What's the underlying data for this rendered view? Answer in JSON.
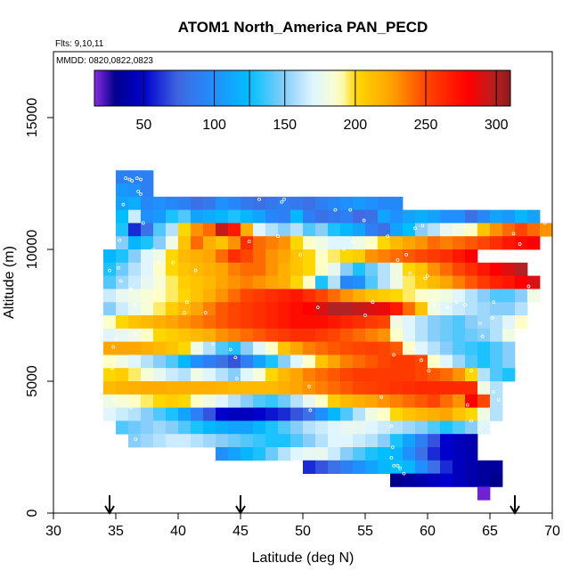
{
  "chart_data": {
    "type": "heatmap",
    "title": "ATOM1 North_America PAN_PECD",
    "annotation_flights": "Flts: 9,10,11",
    "annotation_dates": "MMDD: 0820,0822,0823",
    "xlabel": "Latitude (deg N)",
    "ylabel": "Altitude (m)",
    "xlim": [
      30,
      70
    ],
    "ylim": [
      0,
      17500
    ],
    "xticks": [
      30,
      35,
      40,
      45,
      50,
      55,
      60,
      65,
      70
    ],
    "yticks": [
      0,
      5000,
      10000,
      15000
    ],
    "colorbar": {
      "range": [
        15,
        310
      ],
      "ticks": [
        50,
        100,
        150,
        200,
        250,
        300
      ],
      "boundaries": [
        50,
        100,
        125,
        150,
        200,
        250,
        300
      ],
      "stops": [
        {
          "v": 15,
          "c": "#8a2be2"
        },
        {
          "v": 30,
          "c": "#00008b"
        },
        {
          "v": 50,
          "c": "#0000cd"
        },
        {
          "v": 75,
          "c": "#4169e1"
        },
        {
          "v": 100,
          "c": "#1e90ff"
        },
        {
          "v": 125,
          "c": "#00bfff"
        },
        {
          "v": 150,
          "c": "#87cefa"
        },
        {
          "v": 170,
          "c": "#e0f6ff"
        },
        {
          "v": 190,
          "c": "#ffffc8"
        },
        {
          "v": 200,
          "c": "#ffd700"
        },
        {
          "v": 225,
          "c": "#ffa500"
        },
        {
          "v": 250,
          "c": "#ff4500"
        },
        {
          "v": 280,
          "c": "#ff0000"
        },
        {
          "v": 300,
          "c": "#b22222"
        },
        {
          "v": 310,
          "c": "#8b1a1a"
        }
      ]
    },
    "arrow_latitudes": [
      34.5,
      45,
      67
    ],
    "grid": {
      "cell_width_deg": 1,
      "cell_height_m": 500,
      "rows": [
        {
          "alt": 12500,
          "start": 35,
          "values": [
            90,
            90,
            90
          ]
        },
        {
          "alt": 12000,
          "start": 35,
          "values": [
            105,
            100,
            90
          ]
        },
        {
          "alt": 11500,
          "start": 35,
          "values": [
            110,
            115,
            95,
            100,
            95,
            90,
            80,
            85,
            100,
            95,
            85,
            80,
            85,
            90,
            85,
            80,
            90,
            95,
            100,
            105,
            100,
            95,
            95
          ]
        },
        {
          "alt": 11000,
          "start": 35,
          "values": [
            125,
            165,
            100,
            105,
            130,
            140,
            110,
            115,
            120,
            130,
            120,
            110,
            95,
            90,
            120,
            90,
            80,
            85,
            90,
            75,
            80,
            110,
            100,
            110,
            115,
            110,
            100,
            100,
            80,
            95,
            110,
            105,
            120,
            110
          ]
        },
        {
          "alt": 10500,
          "start": 35,
          "values": [
            130,
            60,
            80,
            140,
            160,
            200,
            230,
            240,
            295,
            270,
            220,
            170,
            160,
            150,
            160,
            140,
            150,
            130,
            120,
            110,
            90,
            80,
            110,
            125,
            150,
            160,
            175,
            180,
            190,
            210,
            230,
            240,
            250,
            240,
            230
          ]
        },
        {
          "alt": 10000,
          "start": 35,
          "values": [
            150,
            120,
            130,
            150,
            180,
            210,
            240,
            220,
            210,
            230,
            260,
            240,
            235,
            230,
            200,
            190,
            180,
            170,
            170,
            180,
            190,
            200,
            215,
            225,
            230,
            240,
            235,
            240,
            245,
            250,
            260,
            270,
            275,
            280
          ]
        },
        {
          "alt": 9500,
          "start": 34,
          "values": [
            120,
            130,
            150,
            170,
            180,
            200,
            215,
            220,
            225,
            240,
            260,
            250,
            240,
            230,
            225,
            210,
            200,
            190,
            195,
            200,
            205,
            230,
            235,
            240,
            245,
            250,
            255,
            260,
            270,
            280
          ]
        },
        {
          "alt": 9000,
          "start": 34,
          "values": [
            130,
            145,
            160,
            170,
            190,
            200,
            210,
            215,
            220,
            225,
            235,
            240,
            240,
            230,
            220,
            210,
            200,
            190,
            175,
            150,
            130,
            145,
            160,
            180,
            200,
            210,
            230,
            240,
            250,
            260,
            270,
            280,
            290,
            300
          ]
        },
        {
          "alt": 8500,
          "start": 34,
          "values": [
            140,
            155,
            165,
            175,
            185,
            195,
            205,
            210,
            215,
            225,
            230,
            235,
            230,
            225,
            220,
            200,
            190,
            130,
            160,
            95,
            100,
            140,
            160,
            180,
            195,
            205,
            215,
            225,
            235,
            245,
            255,
            265,
            270,
            280,
            290
          ]
        },
        {
          "alt": 8000,
          "start": 34,
          "values": [
            165,
            175,
            180,
            185,
            190,
            195,
            200,
            210,
            220,
            230,
            240,
            250,
            255,
            260,
            265,
            270,
            260,
            250,
            240,
            230,
            220,
            210,
            205,
            200,
            195,
            190,
            185,
            180,
            170,
            160,
            150,
            140,
            140,
            150,
            180
          ]
        },
        {
          "alt": 7500,
          "start": 34,
          "values": [
            150,
            165,
            175,
            185,
            195,
            205,
            215,
            225,
            235,
            245,
            250,
            255,
            260,
            265,
            270,
            275,
            280,
            290,
            300,
            300,
            295,
            290,
            285,
            270,
            240,
            210,
            180,
            170,
            165,
            160,
            155,
            150,
            150,
            160
          ]
        },
        {
          "alt": 7000,
          "start": 34,
          "values": [
            190,
            200,
            210,
            215,
            220,
            225,
            230,
            235,
            240,
            245,
            250,
            255,
            260,
            265,
            270,
            275,
            275,
            275,
            270,
            265,
            260,
            255,
            250,
            180,
            170,
            160,
            150,
            145,
            140,
            150,
            155,
            160,
            170,
            190
          ]
        },
        {
          "alt": 6500,
          "start": 34,
          "values": [
            170,
            175,
            180,
            190,
            200,
            205,
            210,
            215,
            220,
            230,
            235,
            240,
            245,
            250,
            255,
            260,
            260,
            255,
            250,
            245,
            240,
            235,
            230,
            190,
            170,
            160,
            150,
            145,
            140,
            145,
            150,
            160,
            180
          ]
        },
        {
          "alt": 6000,
          "start": 34,
          "values": [
            225,
            225,
            225,
            220,
            215,
            210,
            200,
            180,
            160,
            140,
            130,
            150,
            170,
            190,
            210,
            225,
            235,
            240,
            245,
            248,
            250,
            252,
            250,
            245,
            190,
            170,
            160,
            150,
            140,
            135,
            130,
            140,
            150
          ]
        },
        {
          "alt": 5500,
          "start": 34,
          "values": [
            190,
            180,
            170,
            160,
            150,
            140,
            120,
            100,
            90,
            80,
            70,
            90,
            110,
            130,
            150,
            170,
            190,
            210,
            225,
            235,
            240,
            245,
            250,
            255,
            255,
            250,
            190,
            170,
            155,
            140,
            130,
            140,
            150
          ]
        },
        {
          "alt": 5000,
          "start": 34,
          "values": [
            200,
            205,
            195,
            185,
            175,
            165,
            160,
            180,
            170,
            160,
            150,
            170,
            185,
            200,
            215,
            225,
            235,
            240,
            245,
            250,
            255,
            255,
            255,
            255,
            255,
            250,
            245,
            240,
            230,
            200,
            160,
            140,
            130
          ]
        },
        {
          "alt": 4500,
          "start": 34,
          "values": [
            215,
            218,
            220,
            222,
            222,
            220,
            220,
            220,
            220,
            218,
            215,
            215,
            215,
            215,
            220,
            225,
            230,
            235,
            240,
            245,
            250,
            252,
            255,
            258,
            260,
            262,
            262,
            262,
            262,
            262,
            180,
            160
          ]
        },
        {
          "alt": 4000,
          "start": 34,
          "values": [
            180,
            185,
            190,
            195,
            200,
            205,
            200,
            190,
            180,
            170,
            160,
            150,
            140,
            135,
            145,
            160,
            175,
            190,
            205,
            215,
            220,
            225,
            230,
            235,
            240,
            245,
            250,
            240,
            230,
            280,
            250,
            160
          ]
        },
        {
          "alt": 3500,
          "start": 34,
          "values": [
            170,
            165,
            160,
            150,
            140,
            130,
            110,
            90,
            70,
            50,
            45,
            45,
            50,
            55,
            60,
            70,
            80,
            100,
            120,
            140,
            160,
            180,
            190,
            200,
            210,
            215,
            220,
            225,
            210,
            200,
            180,
            160
          ]
        },
        {
          "alt": 3000,
          "start": 35,
          "values": [
            140,
            145,
            150,
            155,
            150,
            140,
            130,
            120,
            115,
            110,
            110,
            120,
            130,
            140,
            150,
            160,
            165,
            170,
            175,
            175,
            170,
            165,
            160,
            155,
            150,
            140,
            130,
            140,
            150,
            170
          ]
        },
        {
          "alt": 2500,
          "start": 36,
          "values": [
            150,
            155,
            160,
            165,
            165,
            160,
            155,
            150,
            145,
            140,
            135,
            130,
            130,
            140,
            150,
            160,
            170,
            170,
            165,
            160,
            150,
            130,
            110,
            90,
            70,
            50,
            45,
            40
          ]
        },
        {
          "alt": 2000,
          "start": 43,
          "values": [
            100,
            110,
            120,
            130,
            145,
            160,
            170,
            175,
            175,
            165,
            150,
            140,
            130,
            125,
            120,
            100,
            80,
            60,
            50,
            45,
            40
          ]
        },
        {
          "alt": 1500,
          "start": 50,
          "values": [
            60,
            70,
            80,
            90,
            100,
            110,
            120,
            125,
            120,
            100,
            80,
            60,
            45,
            40,
            35,
            35
          ]
        },
        {
          "alt": 1000,
          "start": 57,
          "values": [
            30,
            35,
            40,
            45,
            50,
            45,
            40,
            35,
            30
          ]
        },
        {
          "alt": 500,
          "start": 64,
          "values": [
            18
          ]
        }
      ]
    },
    "flight_points": [
      [
        35.8,
        12700
      ],
      [
        36.1,
        12650
      ],
      [
        36.3,
        12600
      ],
      [
        36.7,
        12700
      ],
      [
        37.0,
        12650
      ],
      [
        36.8,
        12200
      ],
      [
        37.0,
        12100
      ],
      [
        35.6,
        11700
      ],
      [
        35.3,
        10350
      ],
      [
        35.2,
        9300
      ],
      [
        34.5,
        9200
      ],
      [
        35.4,
        8800
      ],
      [
        36.2,
        8500
      ],
      [
        36.5,
        7900
      ],
      [
        36.6,
        6800
      ],
      [
        35.0,
        6600
      ],
      [
        34.8,
        6300
      ],
      [
        34.7,
        5500
      ],
      [
        34.9,
        4300
      ],
      [
        36.2,
        4000
      ],
      [
        36.6,
        2800
      ],
      [
        37.2,
        11000
      ],
      [
        38.0,
        10000
      ],
      [
        38.4,
        9500
      ],
      [
        39.6,
        9500
      ],
      [
        41.4,
        9200
      ],
      [
        40.5,
        7600
      ],
      [
        40.7,
        8000
      ],
      [
        42.2,
        7600
      ],
      [
        42.8,
        6400
      ],
      [
        44.2,
        6200
      ],
      [
        44.6,
        5900
      ],
      [
        44.7,
        5100
      ],
      [
        45.7,
        10300
      ],
      [
        46.5,
        11900
      ],
      [
        48.3,
        11800
      ],
      [
        48.5,
        11900
      ],
      [
        48.0,
        10500
      ],
      [
        49.8,
        9800
      ],
      [
        50.0,
        5600
      ],
      [
        50.5,
        4800
      ],
      [
        50.6,
        3900
      ],
      [
        51.2,
        7800
      ],
      [
        52.6,
        11500
      ],
      [
        53.3,
        10000
      ],
      [
        53.8,
        11500
      ],
      [
        54.0,
        10300
      ],
      [
        54.9,
        11100
      ],
      [
        55.0,
        7500
      ],
      [
        55.6,
        8000
      ],
      [
        56.8,
        10500
      ],
      [
        57.6,
        9600
      ],
      [
        58.3,
        9800
      ],
      [
        58.6,
        9100
      ],
      [
        59.0,
        10800
      ],
      [
        59.6,
        10900
      ],
      [
        59.8,
        8900
      ],
      [
        60.0,
        9000
      ],
      [
        60.5,
        7900
      ],
      [
        61.6,
        7800
      ],
      [
        62.3,
        8000
      ],
      [
        63.0,
        7900
      ],
      [
        64.2,
        7200
      ],
      [
        64.4,
        6700
      ],
      [
        65.3,
        8000
      ],
      [
        65.2,
        7400
      ],
      [
        65.3,
        4600
      ],
      [
        65.7,
        4300
      ],
      [
        66.3,
        4300
      ],
      [
        67.0,
        3900
      ],
      [
        66.8,
        3200
      ],
      [
        57.1,
        3300
      ],
      [
        56.3,
        4400
      ],
      [
        57.3,
        6000
      ],
      [
        57.4,
        6800
      ],
      [
        58.9,
        6200
      ],
      [
        59.5,
        5800
      ],
      [
        60.1,
        5400
      ],
      [
        63.5,
        5400
      ],
      [
        63.2,
        4100
      ],
      [
        63.5,
        3500
      ],
      [
        57.2,
        2500
      ],
      [
        57.1,
        2100
      ],
      [
        57.3,
        1800
      ],
      [
        57.6,
        1800
      ],
      [
        57.8,
        1700
      ],
      [
        58.1,
        1500
      ],
      [
        66.9,
        10600
      ],
      [
        67.4,
        10200
      ],
      [
        68.2,
        9700
      ],
      [
        68.1,
        8600
      ],
      [
        69.4,
        11000
      ],
      [
        69.8,
        11200
      ]
    ]
  }
}
